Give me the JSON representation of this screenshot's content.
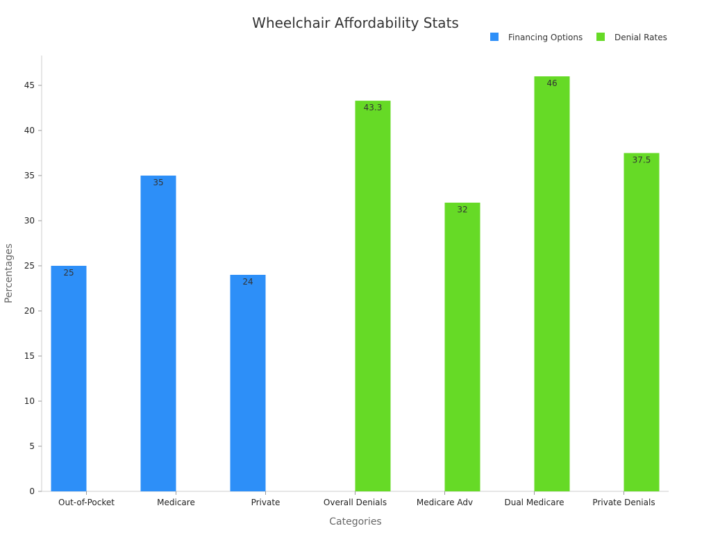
{
  "chart_data": {
    "type": "bar",
    "title": "Wheelchair Affordability Stats",
    "xlabel": "Categories",
    "ylabel": "Percentages",
    "categories": [
      "Out-of-Pocket",
      "Medicare",
      "Private",
      "Overall Denials",
      "Medicare Adv",
      "Dual Medicare",
      "Private Denials"
    ],
    "series": [
      {
        "name": "Financing Options",
        "color": "#2d8ff8",
        "values": [
          25,
          35,
          24,
          null,
          null,
          null,
          null
        ]
      },
      {
        "name": "Denial Rates",
        "color": "#66da26",
        "values": [
          null,
          null,
          null,
          43.3,
          32,
          46,
          37.5
        ]
      }
    ],
    "ylim": [
      0,
      48
    ],
    "yticks": [
      0,
      5,
      10,
      15,
      20,
      25,
      30,
      35,
      40,
      45
    ],
    "grid": false,
    "legend_position": "top-right"
  }
}
